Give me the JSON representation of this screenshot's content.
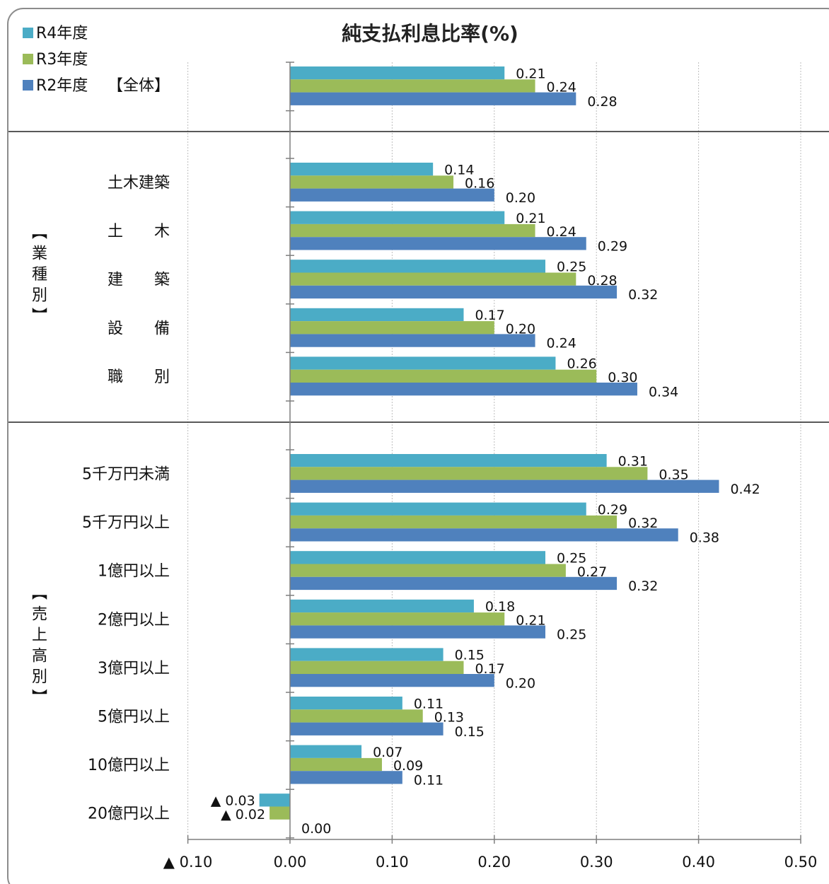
{
  "chart_data": {
    "type": "bar",
    "orientation": "horizontal",
    "title": "純支払利息比率(%)",
    "xlim": [
      -0.1,
      0.5
    ],
    "x_ticks": [
      {
        "value": -0.1,
        "label": "▲ 0.10"
      },
      {
        "value": 0.0,
        "label": "0.00"
      },
      {
        "value": 0.1,
        "label": "0.10"
      },
      {
        "value": 0.2,
        "label": "0.20"
      },
      {
        "value": 0.3,
        "label": "0.30"
      },
      {
        "value": 0.4,
        "label": "0.40"
      },
      {
        "value": 0.5,
        "label": "0.50"
      }
    ],
    "grid": true,
    "legend_position": "top-left",
    "series": [
      {
        "name": "R4年度",
        "color": "#4bacc6"
      },
      {
        "name": "R3年度",
        "color": "#9bbb59"
      },
      {
        "name": "R2年度",
        "color": "#4f81bd"
      }
    ],
    "groups": [
      {
        "label": "【全体】",
        "label_orientation": "horizontal",
        "categories": [
          {
            "label": "",
            "values": [
              0.21,
              0.24,
              0.28
            ],
            "value_labels": [
              "0.21",
              "0.24",
              "0.28"
            ]
          }
        ]
      },
      {
        "label": "【業種別】",
        "label_orientation": "vertical",
        "categories": [
          {
            "label": "土木建築",
            "values": [
              0.14,
              0.16,
              0.2
            ],
            "value_labels": [
              "0.14",
              "0.16",
              "0.20"
            ]
          },
          {
            "label": "土　　木",
            "values": [
              0.21,
              0.24,
              0.29
            ],
            "value_labels": [
              "0.21",
              "0.24",
              "0.29"
            ]
          },
          {
            "label": "建　　築",
            "values": [
              0.25,
              0.28,
              0.32
            ],
            "value_labels": [
              "0.25",
              "0.28",
              "0.32"
            ]
          },
          {
            "label": "設　　備",
            "values": [
              0.17,
              0.2,
              0.24
            ],
            "value_labels": [
              "0.17",
              "0.20",
              "0.24"
            ]
          },
          {
            "label": "職　　別",
            "values": [
              0.26,
              0.3,
              0.34
            ],
            "value_labels": [
              "0.26",
              "0.30",
              "0.34"
            ]
          }
        ]
      },
      {
        "label": "【売上高別】",
        "label_orientation": "vertical",
        "categories": [
          {
            "label": "5千万円未満",
            "values": [
              0.31,
              0.35,
              0.42
            ],
            "value_labels": [
              "0.31",
              "0.35",
              "0.42"
            ]
          },
          {
            "label": "5千万円以上",
            "values": [
              0.29,
              0.32,
              0.38
            ],
            "value_labels": [
              "0.29",
              "0.32",
              "0.38"
            ]
          },
          {
            "label": "1億円以上",
            "values": [
              0.25,
              0.27,
              0.32
            ],
            "value_labels": [
              "0.25",
              "0.27",
              "0.32"
            ]
          },
          {
            "label": "2億円以上",
            "values": [
              0.18,
              0.21,
              0.25
            ],
            "value_labels": [
              "0.18",
              "0.21",
              "0.25"
            ]
          },
          {
            "label": "3億円以上",
            "values": [
              0.15,
              0.17,
              0.2
            ],
            "value_labels": [
              "0.15",
              "0.17",
              "0.20"
            ]
          },
          {
            "label": "5億円以上",
            "values": [
              0.11,
              0.13,
              0.15
            ],
            "value_labels": [
              "0.11",
              "0.13",
              "0.15"
            ]
          },
          {
            "label": "10億円以上",
            "values": [
              0.07,
              0.09,
              0.11
            ],
            "value_labels": [
              "0.07",
              "0.09",
              "0.11"
            ]
          },
          {
            "label": "20億円以上",
            "values": [
              -0.03,
              -0.02,
              0.0
            ],
            "value_labels": [
              "▲ 0.03",
              "▲ 0.02",
              "0.00"
            ]
          }
        ]
      }
    ]
  }
}
